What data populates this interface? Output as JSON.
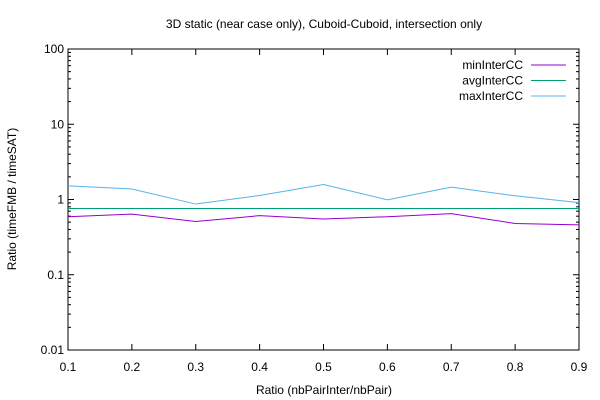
{
  "chart_data": {
    "type": "line",
    "title": "3D static (near case only), Cuboid-Cuboid, intersection only",
    "xlabel": "Ratio (nbPairInter/nbPair)",
    "ylabel": "Ratio (timeFMB / timeSAT)",
    "xlim": [
      0.1,
      0.9
    ],
    "ylim": [
      0.01,
      100
    ],
    "yscale": "log",
    "grid": false,
    "legend_position": "top-right",
    "x": [
      0.1,
      0.2,
      0.3,
      0.4,
      0.5,
      0.6,
      0.7,
      0.8,
      0.9
    ],
    "x_ticks": [
      "0.1",
      "0.2",
      "0.3",
      "0.4",
      "0.5",
      "0.6",
      "0.7",
      "0.8",
      "0.9"
    ],
    "y_ticks": [
      {
        "value": 0.01,
        "label": "0.01"
      },
      {
        "value": 0.1,
        "label": "0.1"
      },
      {
        "value": 1,
        "label": "1"
      },
      {
        "value": 10,
        "label": "10"
      },
      {
        "value": 100,
        "label": "100"
      }
    ],
    "series": [
      {
        "name": "minInterCC",
        "color": "#9400d3",
        "values": [
          0.59,
          0.64,
          0.51,
          0.61,
          0.55,
          0.59,
          0.65,
          0.48,
          0.46
        ]
      },
      {
        "name": "avgInterCC",
        "color": "#009e73",
        "values": [
          0.76,
          0.76,
          0.76,
          0.76,
          0.76,
          0.76,
          0.76,
          0.76,
          0.76
        ]
      },
      {
        "name": "maxInterCC",
        "color": "#56b4e9",
        "values": [
          1.52,
          1.38,
          0.87,
          1.13,
          1.58,
          0.99,
          1.46,
          1.12,
          0.91
        ]
      }
    ]
  }
}
